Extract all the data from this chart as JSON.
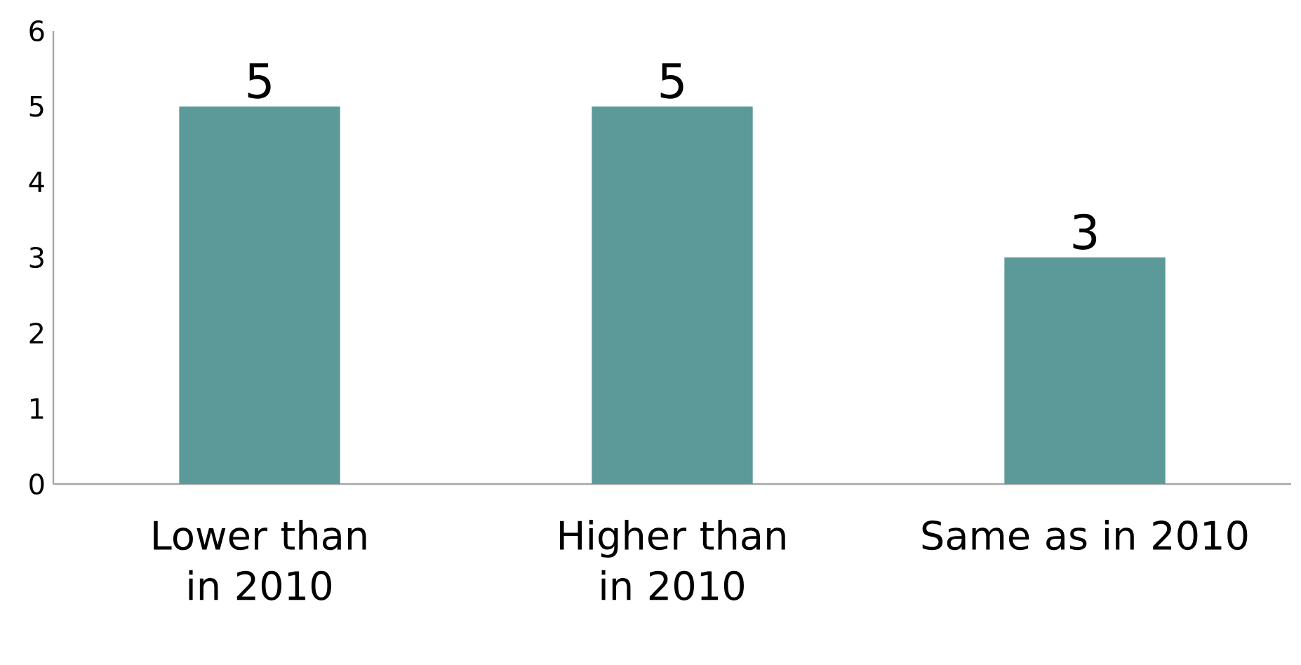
{
  "chart_data": {
    "type": "bar",
    "categories": [
      "Lower than in 2010",
      "Higher than in 2010",
      "Same as in 2010"
    ],
    "values": [
      5,
      5,
      3
    ],
    "color": "#5b9a98",
    "ylim": [
      0,
      6
    ],
    "yticks": [
      0,
      1,
      2,
      3,
      4,
      5,
      6
    ],
    "data_labels": true
  }
}
